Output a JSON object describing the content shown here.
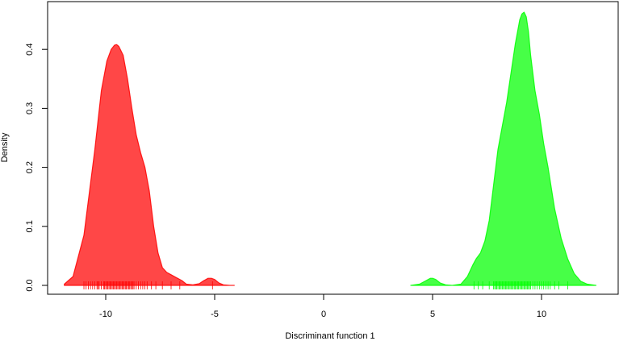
{
  "chart_data": {
    "type": "area",
    "title": "",
    "xlabel": "Discriminant function 1",
    "ylabel": "Density",
    "xlim": [
      -12.5,
      13.0
    ],
    "ylim": [
      0,
      0.47
    ],
    "x_ticks": [
      -10,
      -5,
      0,
      5,
      10
    ],
    "x_tick_labels": [
      "-10",
      "-5",
      "0",
      "5",
      "10"
    ],
    "y_ticks": [
      0.0,
      0.1,
      0.2,
      0.3,
      0.4
    ],
    "y_tick_labels": [
      "0.0",
      "0.1",
      "0.2",
      "0.3",
      "0.4"
    ],
    "grid": false,
    "legend": "none",
    "series": [
      {
        "color": "#ff0000",
        "density": {
          "x": [
            -11.9,
            -11.5,
            -11.0,
            -10.5,
            -10.2,
            -9.95,
            -9.75,
            -9.6,
            -9.5,
            -9.4,
            -9.2,
            -9.0,
            -8.8,
            -8.6,
            -8.4,
            -8.2,
            -8.0,
            -7.8,
            -7.6,
            -7.4,
            -7.2,
            -7.0,
            -6.8,
            -6.5,
            -6.3,
            -6.0,
            -5.7,
            -5.5,
            -5.3,
            -5.15,
            -5.0,
            -4.8,
            -4.6,
            -4.3,
            -4.1
          ],
          "y": [
            0.002,
            0.015,
            0.085,
            0.23,
            0.33,
            0.38,
            0.4,
            0.407,
            0.408,
            0.405,
            0.39,
            0.35,
            0.3,
            0.255,
            0.225,
            0.2,
            0.16,
            0.1,
            0.055,
            0.03,
            0.022,
            0.018,
            0.014,
            0.008,
            0.002,
            0.001,
            0.003,
            0.008,
            0.012,
            0.012,
            0.01,
            0.004,
            0.001,
            0.0,
            0.0
          ]
        },
        "rug": [
          -11.0,
          -10.9,
          -10.8,
          -10.7,
          -10.6,
          -10.5,
          -10.4,
          -10.35,
          -10.3,
          -10.2,
          -10.1,
          -10.05,
          -10.0,
          -9.95,
          -9.9,
          -9.85,
          -9.8,
          -9.75,
          -9.7,
          -9.65,
          -9.6,
          -9.55,
          -9.5,
          -9.45,
          -9.4,
          -9.35,
          -9.3,
          -9.25,
          -9.2,
          -9.15,
          -9.1,
          -9.05,
          -9.0,
          -8.95,
          -8.9,
          -8.85,
          -8.8,
          -8.75,
          -8.7,
          -8.6,
          -8.5,
          -8.4,
          -8.3,
          -8.2,
          -8.1,
          -7.9,
          -7.7,
          -7.4,
          -7.0,
          -6.6,
          -5.1
        ]
      },
      {
        "color": "#00ff00",
        "density": {
          "x": [
            4.0,
            4.4,
            4.7,
            4.9,
            5.0,
            5.15,
            5.35,
            5.6,
            5.9,
            6.3,
            6.6,
            6.85,
            7.0,
            7.2,
            7.4,
            7.6,
            7.8,
            8.0,
            8.2,
            8.4,
            8.6,
            8.8,
            9.0,
            9.1,
            9.2,
            9.3,
            9.4,
            9.5,
            9.7,
            9.9,
            10.1,
            10.3,
            10.6,
            10.9,
            11.2,
            11.5,
            11.8,
            12.1,
            12.5
          ],
          "y": [
            0.0,
            0.002,
            0.008,
            0.012,
            0.012,
            0.01,
            0.004,
            0.001,
            0.0,
            0.002,
            0.015,
            0.035,
            0.045,
            0.055,
            0.075,
            0.11,
            0.17,
            0.23,
            0.27,
            0.31,
            0.36,
            0.41,
            0.45,
            0.46,
            0.463,
            0.455,
            0.43,
            0.39,
            0.33,
            0.29,
            0.24,
            0.2,
            0.13,
            0.08,
            0.045,
            0.02,
            0.007,
            0.002,
            0.0
          ]
        },
        "rug": [
          6.9,
          7.1,
          7.3,
          7.6,
          7.8,
          7.85,
          7.9,
          7.95,
          8.0,
          8.05,
          8.1,
          8.15,
          8.2,
          8.25,
          8.3,
          8.35,
          8.4,
          8.45,
          8.5,
          8.55,
          8.6,
          8.65,
          8.7,
          8.75,
          8.8,
          8.85,
          8.9,
          8.95,
          9.0,
          9.05,
          9.1,
          9.15,
          9.2,
          9.25,
          9.3,
          9.35,
          9.4,
          9.45,
          9.5,
          9.6,
          9.7,
          9.8,
          9.9,
          10.0,
          10.1,
          10.2,
          10.3,
          10.4,
          10.6,
          10.8,
          11.2
        ]
      }
    ]
  }
}
